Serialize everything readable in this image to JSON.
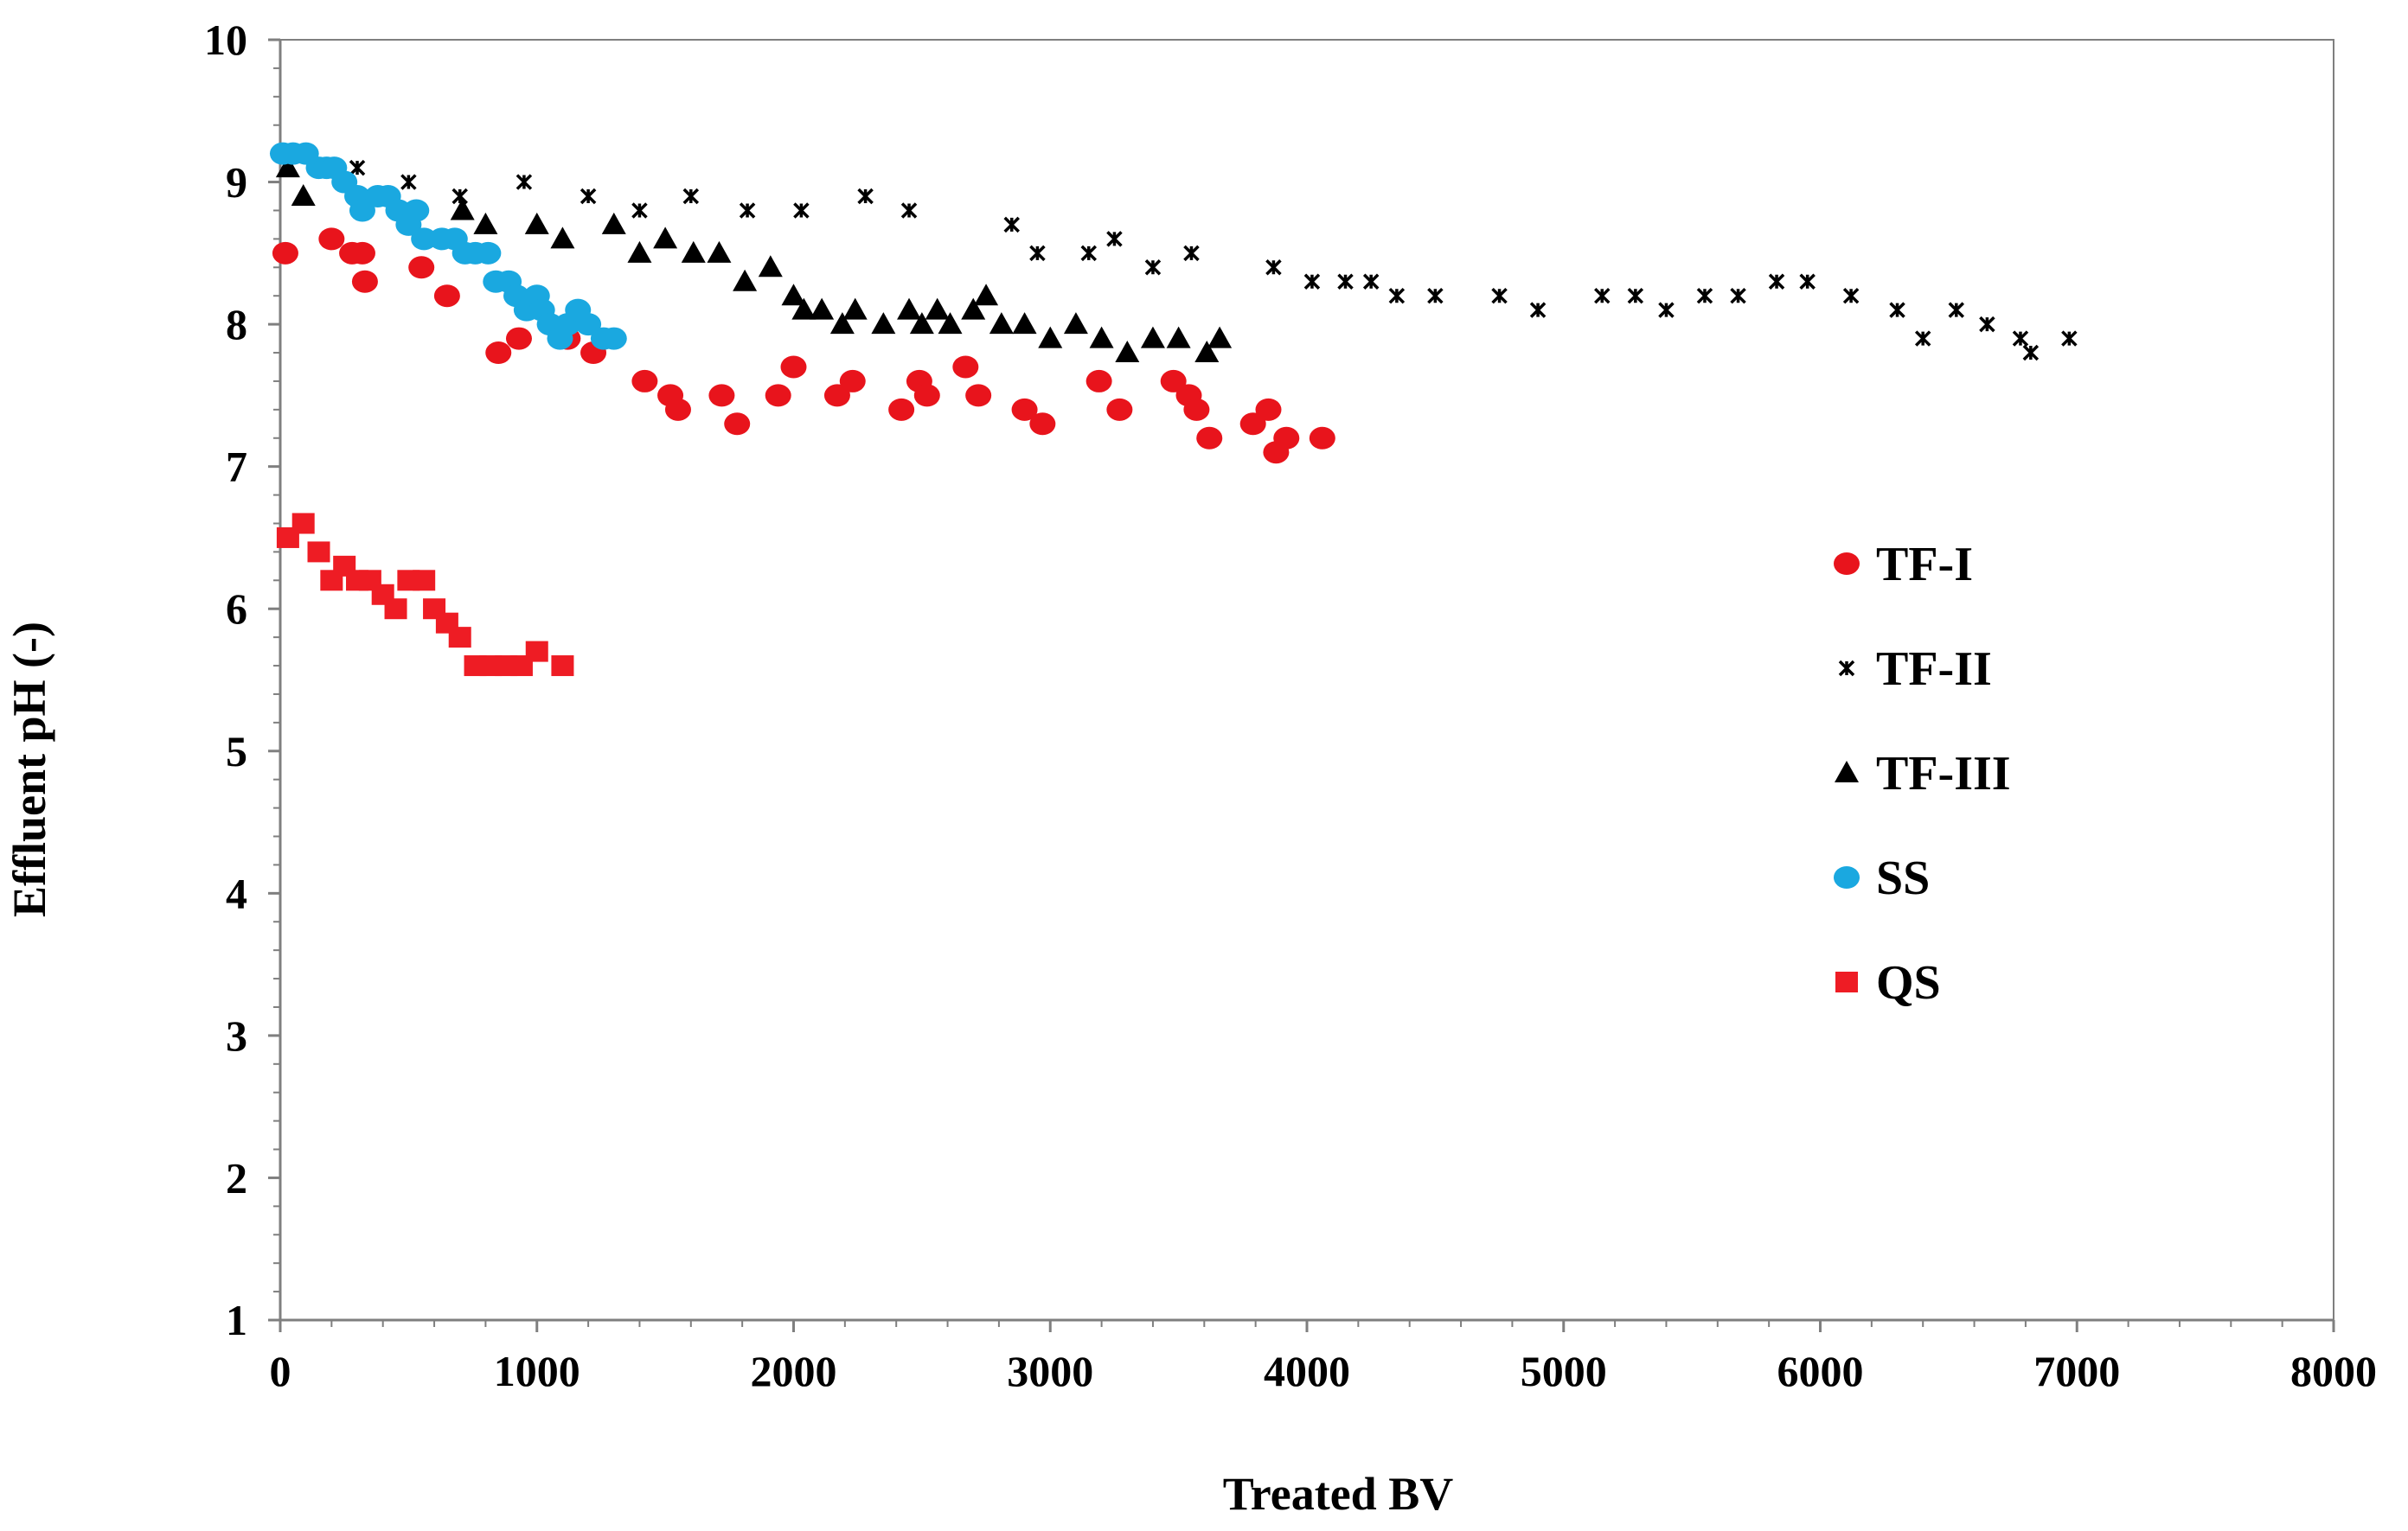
{
  "chart_data": {
    "type": "scatter",
    "title": "",
    "xlabel": "Treated BV",
    "ylabel": "Effluent pH (-)",
    "xlim": [
      0,
      8000
    ],
    "ylim": [
      1,
      10
    ],
    "xticks": [
      0,
      1000,
      2000,
      3000,
      4000,
      5000,
      6000,
      7000,
      8000
    ],
    "yticks": [
      1,
      2,
      3,
      4,
      5,
      6,
      7,
      8,
      9,
      10
    ],
    "xtick_labels": [
      "0",
      "1000",
      "2000",
      "3000",
      "4000",
      "5000",
      "6000",
      "7000",
      "8000"
    ],
    "ytick_labels": [
      "1",
      "2",
      "3",
      "4",
      "5",
      "6",
      "7",
      "8",
      "9",
      "10"
    ],
    "grid": false,
    "legend_position": "right-middle",
    "series": [
      {
        "name": "TF-I",
        "marker": "circle",
        "color": "#e8141c",
        "points": [
          [
            20,
            8.5
          ],
          [
            200,
            8.6
          ],
          [
            280,
            8.5
          ],
          [
            320,
            8.5
          ],
          [
            330,
            8.3
          ],
          [
            550,
            8.4
          ],
          [
            650,
            8.2
          ],
          [
            850,
            7.8
          ],
          [
            930,
            7.9
          ],
          [
            1120,
            7.9
          ],
          [
            1220,
            7.8
          ],
          [
            1420,
            7.6
          ],
          [
            1520,
            7.5
          ],
          [
            1550,
            7.4
          ],
          [
            1720,
            7.5
          ],
          [
            1780,
            7.3
          ],
          [
            1940,
            7.5
          ],
          [
            2000,
            7.7
          ],
          [
            2170,
            7.5
          ],
          [
            2230,
            7.6
          ],
          [
            2420,
            7.4
          ],
          [
            2490,
            7.6
          ],
          [
            2520,
            7.5
          ],
          [
            2670,
            7.7
          ],
          [
            2720,
            7.5
          ],
          [
            2900,
            7.4
          ],
          [
            2970,
            7.3
          ],
          [
            3190,
            7.6
          ],
          [
            3270,
            7.4
          ],
          [
            3480,
            7.6
          ],
          [
            3540,
            7.5
          ],
          [
            3570,
            7.4
          ],
          [
            3620,
            7.2
          ],
          [
            3790,
            7.3
          ],
          [
            3850,
            7.4
          ],
          [
            3880,
            7.1
          ],
          [
            3920,
            7.2
          ],
          [
            4060,
            7.2
          ]
        ]
      },
      {
        "name": "TF-II",
        "marker": "x",
        "color": "#000000",
        "points": [
          [
            30,
            9.1
          ],
          [
            300,
            9.1
          ],
          [
            500,
            9.0
          ],
          [
            700,
            8.9
          ],
          [
            950,
            9.0
          ],
          [
            1200,
            8.9
          ],
          [
            1400,
            8.8
          ],
          [
            1600,
            8.9
          ],
          [
            1820,
            8.8
          ],
          [
            2030,
            8.8
          ],
          [
            2280,
            8.9
          ],
          [
            2450,
            8.8
          ],
          [
            2850,
            8.7
          ],
          [
            2950,
            8.5
          ],
          [
            3150,
            8.5
          ],
          [
            3250,
            8.6
          ],
          [
            3400,
            8.4
          ],
          [
            3550,
            8.5
          ],
          [
            3870,
            8.4
          ],
          [
            4020,
            8.3
          ],
          [
            4150,
            8.3
          ],
          [
            4250,
            8.3
          ],
          [
            4350,
            8.2
          ],
          [
            4500,
            8.2
          ],
          [
            4750,
            8.2
          ],
          [
            4900,
            8.1
          ],
          [
            5150,
            8.2
          ],
          [
            5280,
            8.2
          ],
          [
            5400,
            8.1
          ],
          [
            5550,
            8.2
          ],
          [
            5680,
            8.2
          ],
          [
            5830,
            8.3
          ],
          [
            5950,
            8.3
          ],
          [
            6120,
            8.2
          ],
          [
            6300,
            8.1
          ],
          [
            6400,
            7.9
          ],
          [
            6530,
            8.1
          ],
          [
            6650,
            8.0
          ],
          [
            6780,
            7.9
          ],
          [
            6820,
            7.8
          ],
          [
            6970,
            7.9
          ]
        ]
      },
      {
        "name": "TF-III",
        "marker": "triangle",
        "color": "#000000",
        "points": [
          [
            30,
            9.1
          ],
          [
            90,
            8.9
          ],
          [
            710,
            8.8
          ],
          [
            800,
            8.7
          ],
          [
            1000,
            8.7
          ],
          [
            1100,
            8.6
          ],
          [
            1300,
            8.7
          ],
          [
            1400,
            8.5
          ],
          [
            1500,
            8.6
          ],
          [
            1610,
            8.5
          ],
          [
            1710,
            8.5
          ],
          [
            1810,
            8.3
          ],
          [
            1910,
            8.4
          ],
          [
            2000,
            8.2
          ],
          [
            2040,
            8.1
          ],
          [
            2110,
            8.1
          ],
          [
            2190,
            8.0
          ],
          [
            2240,
            8.1
          ],
          [
            2350,
            8.0
          ],
          [
            2450,
            8.1
          ],
          [
            2500,
            8.0
          ],
          [
            2560,
            8.1
          ],
          [
            2610,
            8.0
          ],
          [
            2700,
            8.1
          ],
          [
            2750,
            8.2
          ],
          [
            2810,
            8.0
          ],
          [
            2900,
            8.0
          ],
          [
            3000,
            7.9
          ],
          [
            3100,
            8.0
          ],
          [
            3200,
            7.9
          ],
          [
            3300,
            7.8
          ],
          [
            3400,
            7.9
          ],
          [
            3500,
            7.9
          ],
          [
            3610,
            7.8
          ],
          [
            3660,
            7.9
          ]
        ]
      },
      {
        "name": "SS",
        "marker": "circle",
        "color": "#1aa8e0",
        "points": [
          [
            10,
            9.2
          ],
          [
            50,
            9.2
          ],
          [
            100,
            9.2
          ],
          [
            150,
            9.1
          ],
          [
            180,
            9.1
          ],
          [
            210,
            9.1
          ],
          [
            250,
            9.0
          ],
          [
            300,
            8.9
          ],
          [
            320,
            8.8
          ],
          [
            380,
            8.9
          ],
          [
            420,
            8.9
          ],
          [
            460,
            8.8
          ],
          [
            500,
            8.7
          ],
          [
            530,
            8.8
          ],
          [
            560,
            8.6
          ],
          [
            630,
            8.6
          ],
          [
            680,
            8.6
          ],
          [
            720,
            8.5
          ],
          [
            760,
            8.5
          ],
          [
            810,
            8.5
          ],
          [
            840,
            8.3
          ],
          [
            890,
            8.3
          ],
          [
            920,
            8.2
          ],
          [
            960,
            8.1
          ],
          [
            1000,
            8.2
          ],
          [
            1020,
            8.1
          ],
          [
            1050,
            8.0
          ],
          [
            1090,
            7.9
          ],
          [
            1120,
            8.0
          ],
          [
            1160,
            8.1
          ],
          [
            1200,
            8.0
          ],
          [
            1260,
            7.9
          ],
          [
            1300,
            7.9
          ]
        ]
      },
      {
        "name": "QS",
        "marker": "square",
        "color": "#ee1c24",
        "points": [
          [
            30,
            6.5
          ],
          [
            90,
            6.6
          ],
          [
            150,
            6.4
          ],
          [
            200,
            6.2
          ],
          [
            250,
            6.3
          ],
          [
            300,
            6.2
          ],
          [
            350,
            6.2
          ],
          [
            400,
            6.1
          ],
          [
            450,
            6.0
          ],
          [
            500,
            6.2
          ],
          [
            560,
            6.2
          ],
          [
            600,
            6.0
          ],
          [
            650,
            5.9
          ],
          [
            700,
            5.8
          ],
          [
            760,
            5.6
          ],
          [
            820,
            5.6
          ],
          [
            880,
            5.6
          ],
          [
            940,
            5.6
          ],
          [
            1000,
            5.7
          ],
          [
            1100,
            5.6
          ]
        ]
      }
    ]
  }
}
